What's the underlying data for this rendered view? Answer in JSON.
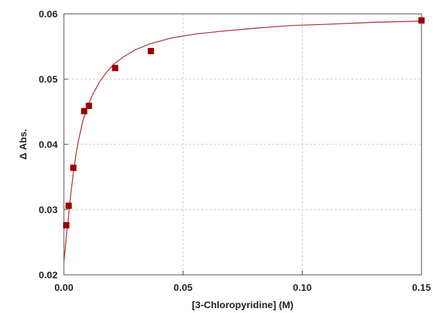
{
  "chart_data": {
    "type": "scatter",
    "title": "",
    "xlabel": "[3-Chloropyridine] (M)",
    "ylabel": "Δ Abs.",
    "xlim": [
      0,
      0.15
    ],
    "ylim": [
      0.02,
      0.06
    ],
    "x_ticks": [
      {
        "value": 0,
        "label": "0.00"
      },
      {
        "value": 0.05,
        "label": "0.05"
      },
      {
        "value": 0.1,
        "label": "0.10"
      },
      {
        "value": 0.15,
        "label": "0.15"
      }
    ],
    "y_ticks": [
      {
        "value": 0.02,
        "label": "0.02"
      },
      {
        "value": 0.03,
        "label": "0.03"
      },
      {
        "value": 0.04,
        "label": "0.04"
      },
      {
        "value": 0.05,
        "label": "0.05"
      },
      {
        "value": 0.06,
        "label": "0.06"
      }
    ],
    "grid": true,
    "legend": "none",
    "series": [
      {
        "kind": "points",
        "color": "#990000",
        "marker": "square",
        "x": [
          0.001,
          0.002,
          0.004,
          0.0085,
          0.0105,
          0.0215,
          0.0365,
          0.15
        ],
        "y": [
          0.0276,
          0.0306,
          0.0364,
          0.0451,
          0.0459,
          0.0517,
          0.0543,
          0.059
        ]
      },
      {
        "kind": "fit",
        "color": "#b03030",
        "x": [
          0.0001,
          0.0005,
          0.001,
          0.002,
          0.003,
          0.004,
          0.005,
          0.006,
          0.008,
          0.01,
          0.012,
          0.015,
          0.018,
          0.021,
          0.025,
          0.03,
          0.036,
          0.045,
          0.055,
          0.065,
          0.08,
          0.095,
          0.11,
          0.13,
          0.15
        ],
        "y": [
          0.0222,
          0.0238,
          0.0257,
          0.0292,
          0.0327,
          0.0357,
          0.0383,
          0.0404,
          0.0437,
          0.0459,
          0.0476,
          0.0496,
          0.0511,
          0.0523,
          0.0534,
          0.0545,
          0.0554,
          0.0563,
          0.0569,
          0.0573,
          0.0578,
          0.0582,
          0.0584,
          0.0587,
          0.0589
        ]
      }
    ]
  }
}
